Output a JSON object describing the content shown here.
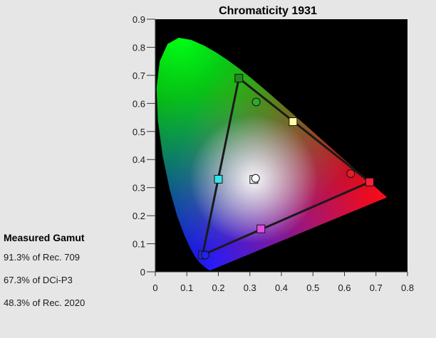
{
  "chart_data": {
    "type": "scatter",
    "title": "Chromaticity 1931",
    "xlabel": "",
    "ylabel": "",
    "xlim": [
      0,
      0.8
    ],
    "ylim": [
      0,
      0.9
    ],
    "x_ticks": [
      "0",
      "0.1",
      "0.2",
      "0.3",
      "0.4",
      "0.5",
      "0.6",
      "0.7",
      "0.8"
    ],
    "y_ticks": [
      "0",
      "0.1",
      "0.2",
      "0.3",
      "0.4",
      "0.5",
      "0.6",
      "0.7",
      "0.8",
      "0.9"
    ],
    "grid": false,
    "background": "#000000",
    "spectral_locus": [
      [
        0.1741,
        0.005
      ],
      [
        0.1738,
        0.0049
      ],
      [
        0.1736,
        0.0049
      ],
      [
        0.1733,
        0.0048
      ],
      [
        0.173,
        0.0048
      ],
      [
        0.1726,
        0.0048
      ],
      [
        0.1721,
        0.0048
      ],
      [
        0.1714,
        0.0051
      ],
      [
        0.1703,
        0.0058
      ],
      [
        0.1689,
        0.0069
      ],
      [
        0.1669,
        0.0086
      ],
      [
        0.1644,
        0.0109
      ],
      [
        0.1611,
        0.0138
      ],
      [
        0.1566,
        0.0177
      ],
      [
        0.151,
        0.0227
      ],
      [
        0.144,
        0.0297
      ],
      [
        0.1355,
        0.0399
      ],
      [
        0.1241,
        0.0578
      ],
      [
        0.1096,
        0.0868
      ],
      [
        0.0913,
        0.1327
      ],
      [
        0.0687,
        0.2007
      ],
      [
        0.0454,
        0.295
      ],
      [
        0.0235,
        0.4127
      ],
      [
        0.0082,
        0.5384
      ],
      [
        0.0039,
        0.6548
      ],
      [
        0.0139,
        0.7502
      ],
      [
        0.0389,
        0.812
      ],
      [
        0.0743,
        0.8338
      ],
      [
        0.1142,
        0.8262
      ],
      [
        0.1547,
        0.8059
      ],
      [
        0.1929,
        0.7816
      ],
      [
        0.2296,
        0.7543
      ],
      [
        0.2658,
        0.7243
      ],
      [
        0.3016,
        0.6923
      ],
      [
        0.3373,
        0.6589
      ],
      [
        0.3731,
        0.6245
      ],
      [
        0.4087,
        0.5896
      ],
      [
        0.4441,
        0.5547
      ],
      [
        0.4788,
        0.5202
      ],
      [
        0.5125,
        0.4866
      ],
      [
        0.5448,
        0.4544
      ],
      [
        0.5752,
        0.4242
      ],
      [
        0.6029,
        0.3965
      ],
      [
        0.627,
        0.3725
      ],
      [
        0.6482,
        0.3514
      ],
      [
        0.6658,
        0.334
      ],
      [
        0.6801,
        0.3197
      ],
      [
        0.6915,
        0.3083
      ],
      [
        0.7006,
        0.2993
      ],
      [
        0.7079,
        0.292
      ],
      [
        0.714,
        0.2859
      ],
      [
        0.719,
        0.2809
      ],
      [
        0.723,
        0.277
      ],
      [
        0.726,
        0.274
      ],
      [
        0.7283,
        0.2717
      ],
      [
        0.73,
        0.27
      ],
      [
        0.7311,
        0.2689
      ],
      [
        0.732,
        0.268
      ],
      [
        0.7327,
        0.2673
      ],
      [
        0.7334,
        0.2666
      ],
      [
        0.734,
        0.266
      ],
      [
        0.7344,
        0.2656
      ],
      [
        0.7346,
        0.2654
      ],
      [
        0.7347,
        0.2653
      ]
    ],
    "reference_triangle": [
      {
        "name": "red",
        "x": 0.68,
        "y": 0.32,
        "color": "#ff1f3d"
      },
      {
        "name": "green",
        "x": 0.265,
        "y": 0.69,
        "color": "#1e8a1e"
      },
      {
        "name": "blue",
        "x": 0.15,
        "y": 0.06,
        "color": "#2a2ad6"
      }
    ],
    "reference_secondaries": [
      {
        "name": "yellow",
        "x": 0.437,
        "y": 0.535,
        "color": "#ffffa8"
      },
      {
        "name": "cyan",
        "x": 0.2,
        "y": 0.33,
        "color": "#33e6e6"
      },
      {
        "name": "magenta",
        "x": 0.335,
        "y": 0.153,
        "color": "#e64de6"
      },
      {
        "name": "white",
        "x": 0.3127,
        "y": 0.329,
        "color": "#ffffff"
      }
    ],
    "measured_points": [
      {
        "name": "red",
        "x": 0.62,
        "y": 0.35,
        "color": "#e01f2a"
      },
      {
        "name": "green",
        "x": 0.32,
        "y": 0.605,
        "color": "#2eaa2e"
      },
      {
        "name": "blue",
        "x": 0.158,
        "y": 0.06,
        "color": "#2222ee"
      },
      {
        "name": "white",
        "x": 0.318,
        "y": 0.333,
        "color": "#ffffff"
      }
    ]
  },
  "gamut": {
    "title": "Measured Gamut",
    "rec709": "91.3% of Rec. 709",
    "dcip3": "67.3% of DCi-P3",
    "rec2020": "48.3% of Rec. 2020"
  }
}
